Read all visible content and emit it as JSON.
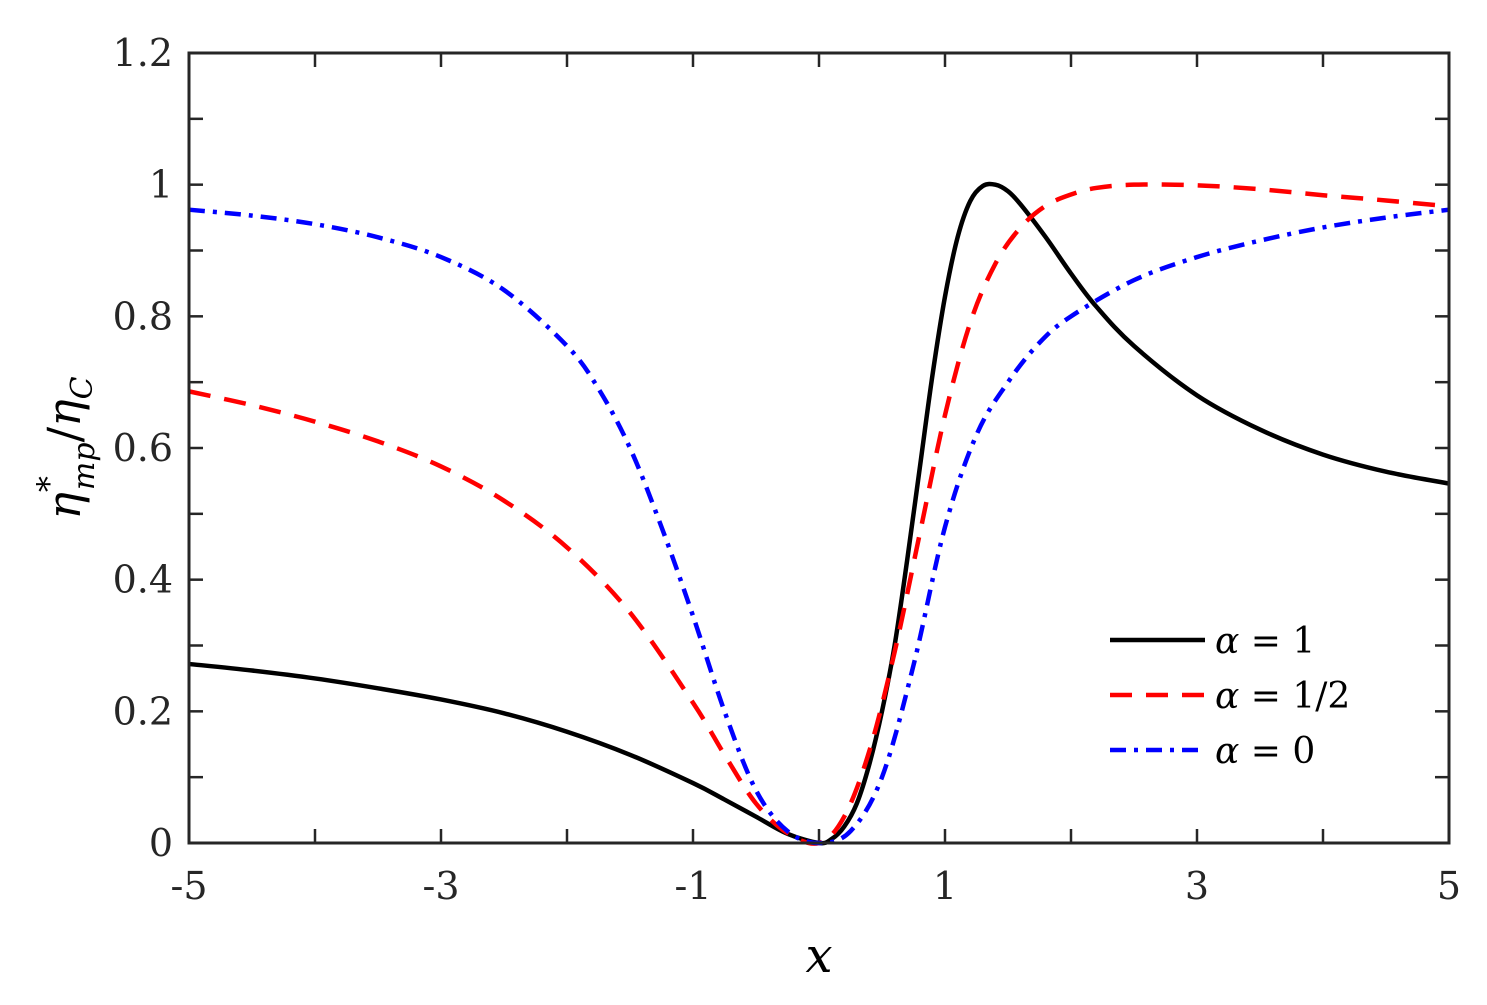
{
  "chart_data": {
    "type": "line",
    "title": "",
    "xlabel": "x",
    "ylabel": {
      "base": "η",
      "sup": "*",
      "sub": "mp",
      "slash": "/",
      "base2": "η",
      "sub2": "C"
    },
    "xlim": [
      -5,
      5
    ],
    "ylim": [
      0,
      1.2
    ],
    "xticks": [
      -5,
      -3,
      -1,
      1,
      3,
      5
    ],
    "xtick_labels": [
      "-5",
      "-3",
      "-1",
      "1",
      "3",
      "5"
    ],
    "yticks": [
      0,
      0.2,
      0.4,
      0.6,
      0.8,
      1,
      1.2
    ],
    "ytick_labels": [
      "0",
      "0.2",
      "0.4",
      "0.6",
      "0.8",
      "1",
      "1.2"
    ],
    "minor_x_step": 1,
    "minor_y_step": 0.1,
    "grid": false,
    "legend_position": "bottom-right",
    "series": [
      {
        "name": "α = 1",
        "legend_symbol": "α",
        "legend_rest": " = 1",
        "color": "#000000",
        "dash": "solid",
        "x": [
          -5,
          -4.5,
          -4,
          -3.5,
          -3,
          -2.5,
          -2,
          -1.5,
          -1,
          -0.75,
          -0.5,
          -0.25,
          0,
          0.1,
          0.2,
          0.3,
          0.4,
          0.5,
          0.6,
          0.7,
          0.8,
          0.9,
          1.0,
          1.1,
          1.2,
          1.3,
          1.4,
          1.5,
          1.6,
          1.8,
          2.0,
          2.2,
          2.5,
          3.0,
          3.5,
          4.0,
          4.5,
          5.0
        ],
        "y": [
          0.272,
          0.262,
          0.25,
          0.235,
          0.218,
          0.197,
          0.169,
          0.134,
          0.091,
          0.066,
          0.04,
          0.014,
          0.0,
          0.006,
          0.025,
          0.06,
          0.12,
          0.2,
          0.3,
          0.43,
          0.57,
          0.71,
          0.83,
          0.92,
          0.975,
          0.998,
          1.0,
          0.99,
          0.97,
          0.92,
          0.865,
          0.815,
          0.755,
          0.68,
          0.628,
          0.59,
          0.564,
          0.546
        ]
      },
      {
        "name": "α = 1/2",
        "legend_symbol": "α",
        "legend_rest": " = 1/2",
        "color": "#ff0000",
        "dash": "dashed",
        "x": [
          -5,
          -4.5,
          -4,
          -3.5,
          -3,
          -2.5,
          -2,
          -1.5,
          -1,
          -0.75,
          -0.5,
          -0.25,
          0,
          0.2,
          0.4,
          0.6,
          0.8,
          1.0,
          1.2,
          1.4,
          1.6,
          1.8,
          2.0,
          2.2,
          2.5,
          3.0,
          3.5,
          4.0,
          4.5,
          5.0
        ],
        "y": [
          0.686,
          0.665,
          0.64,
          0.61,
          0.572,
          0.52,
          0.449,
          0.35,
          0.213,
          0.134,
          0.06,
          0.015,
          0.0,
          0.04,
          0.14,
          0.29,
          0.47,
          0.65,
          0.79,
          0.88,
          0.935,
          0.968,
          0.985,
          0.995,
          1.0,
          0.999,
          0.993,
          0.984,
          0.976,
          0.967
        ]
      },
      {
        "name": "α = 0",
        "legend_symbol": "α",
        "legend_rest": " = 0",
        "color": "#0000ff",
        "dash": "dashdot",
        "x": [
          -5,
          -4.5,
          -4,
          -3.5,
          -3,
          -2.5,
          -2,
          -1.75,
          -1.5,
          -1.25,
          -1,
          -0.75,
          -0.5,
          -0.25,
          0,
          0.25,
          0.5,
          0.75,
          1.0,
          1.25,
          1.5,
          1.75,
          2.0,
          2.5,
          3.0,
          3.5,
          4.0,
          4.5,
          5.0
        ],
        "y": [
          0.962,
          0.953,
          0.94,
          0.92,
          0.89,
          0.84,
          0.755,
          0.69,
          0.6,
          0.48,
          0.345,
          0.2,
          0.08,
          0.018,
          0.0,
          0.018,
          0.1,
          0.27,
          0.48,
          0.62,
          0.7,
          0.76,
          0.8,
          0.855,
          0.89,
          0.915,
          0.935,
          0.95,
          0.962
        ]
      }
    ]
  }
}
